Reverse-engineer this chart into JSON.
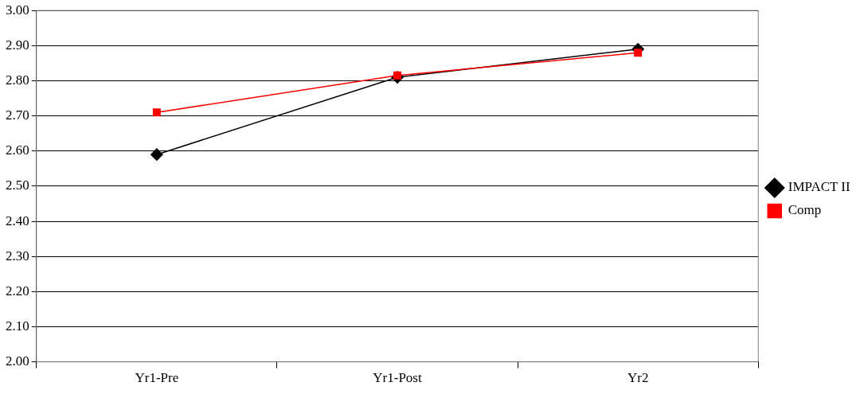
{
  "chart_data": {
    "type": "line",
    "categories": [
      "Yr1-Pre",
      "Yr1-Post",
      "Yr2"
    ],
    "series": [
      {
        "name": "IMPACT II",
        "color": "#000000",
        "values": [
          2.59,
          2.81,
          2.89
        ],
        "marker": "diamond"
      },
      {
        "name": "Comp",
        "color": "#ff0000",
        "values": [
          2.71,
          2.815,
          2.88
        ],
        "marker": "square"
      }
    ],
    "ylim": [
      2.0,
      3.0
    ],
    "yticks": [
      {
        "value": 2.0,
        "label": "2.00"
      },
      {
        "value": 2.1,
        "label": "2.10"
      },
      {
        "value": 2.2,
        "label": "2.20"
      },
      {
        "value": 2.3,
        "label": "2.30"
      },
      {
        "value": 2.4,
        "label": "2.40"
      },
      {
        "value": 2.5,
        "label": "2.50"
      },
      {
        "value": 2.6,
        "label": "2.60"
      },
      {
        "value": 2.7,
        "label": "2.70"
      },
      {
        "value": 2.8,
        "label": "2.80"
      },
      {
        "value": 2.9,
        "label": "2.90"
      },
      {
        "value": 3.0,
        "label": "3.00"
      }
    ],
    "grid": "y",
    "legend": "right",
    "line_style": "solid"
  }
}
